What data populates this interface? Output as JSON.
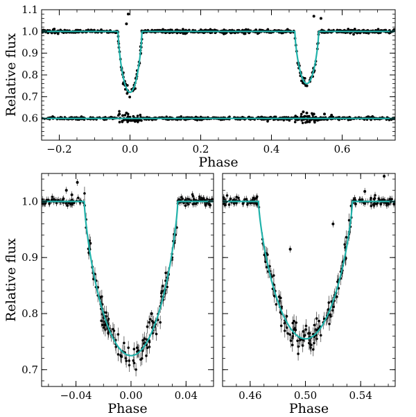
{
  "chart_data": [
    {
      "id": "top",
      "type": "scatter",
      "xlabel": "Phase",
      "ylabel": "Relative flux",
      "xlim": [
        -0.25,
        0.75
      ],
      "ylim": [
        0.5,
        1.1
      ],
      "xticks": [
        -0.2,
        0.0,
        0.2,
        0.4,
        0.6
      ],
      "xtick_labels": [
        "−0.2",
        "0.0",
        "0.2",
        "0.4",
        "0.6"
      ],
      "yticks": [
        0.6,
        0.7,
        0.8,
        0.9,
        1.0,
        1.1
      ],
      "ytick_labels": [
        "0.6",
        "0.7",
        "0.8",
        "0.9",
        "1.0",
        "1.1"
      ],
      "grid": false,
      "legend": "none",
      "series": [
        {
          "kind": "observations",
          "color": "#000000",
          "model": {
            "baseline": 1.0,
            "eclipses": [
              {
                "center": 0.0,
                "depth": 0.28,
                "half_width": 0.034
              },
              {
                "center": 0.5,
                "depth": 0.24,
                "half_width": 0.034
              }
            ]
          },
          "outliers": [
            [
              -0.005,
              1.08
            ],
            [
              0.52,
              1.07
            ],
            [
              0.54,
              1.06
            ],
            [
              -0.01,
              1.035
            ]
          ]
        },
        {
          "kind": "model-fit",
          "color": "#20b2aa"
        },
        {
          "kind": "residuals",
          "color": "#000000",
          "baseline": 0.6,
          "outliers": [
            [
              0.49,
              0.63
            ],
            [
              0.5,
              0.625
            ],
            [
              0.52,
              0.62
            ],
            [
              0.55,
              0.62
            ],
            [
              0.57,
              0.615
            ],
            [
              -0.03,
              0.62
            ],
            [
              -0.01,
              0.625
            ]
          ]
        },
        {
          "kind": "residual-model",
          "color": "#20b2aa",
          "value": 0.6
        }
      ]
    },
    {
      "id": "bottom-left",
      "type": "scatter",
      "xlabel": "Phase",
      "ylabel": "Relative flux",
      "xlim": [
        -0.065,
        0.06
      ],
      "ylim": [
        0.67,
        1.05
      ],
      "xticks": [
        -0.04,
        0.0,
        0.04
      ],
      "xtick_labels": [
        "−0.04",
        "0.00",
        "0.04"
      ],
      "yticks": [
        0.7,
        0.8,
        0.9,
        1.0
      ],
      "ytick_labels": [
        "0.7",
        "0.8",
        "0.9",
        "1.0"
      ],
      "grid": false,
      "legend": "none",
      "series": [
        {
          "kind": "observations-with-errorbars",
          "color": "#000000",
          "model": {
            "baseline": 1.0,
            "center": 0.0,
            "depth": 0.275,
            "half_width": 0.034
          },
          "outliers": [
            [
              -0.047,
              1.02
            ],
            [
              -0.043,
              1.012
            ],
            [
              -0.039,
              1.034
            ],
            [
              0.015,
              0.8
            ]
          ]
        },
        {
          "kind": "model-fit",
          "color": "#20b2aa"
        }
      ]
    },
    {
      "id": "bottom-right",
      "type": "scatter",
      "xlabel": "Phase",
      "ylabel": "",
      "xlim": [
        0.44,
        0.565
      ],
      "ylim": [
        0.67,
        1.05
      ],
      "xticks": [
        0.46,
        0.5,
        0.54
      ],
      "xtick_labels": [
        "0.46",
        "0.50",
        "0.54"
      ],
      "yticks": [
        0.7,
        0.8,
        0.9,
        1.0
      ],
      "ytick_labels": [],
      "grid": false,
      "legend": "none",
      "series": [
        {
          "kind": "observations-with-errorbars",
          "color": "#000000",
          "model": {
            "baseline": 1.0,
            "center": 0.5,
            "depth": 0.245,
            "half_width": 0.034
          },
          "outliers": [
            [
              0.557,
              1.045
            ],
            [
              0.543,
              1.018
            ],
            [
              0.489,
              0.915
            ],
            [
              0.52,
              0.96
            ]
          ]
        },
        {
          "kind": "model-fit",
          "color": "#20b2aa"
        }
      ]
    }
  ]
}
